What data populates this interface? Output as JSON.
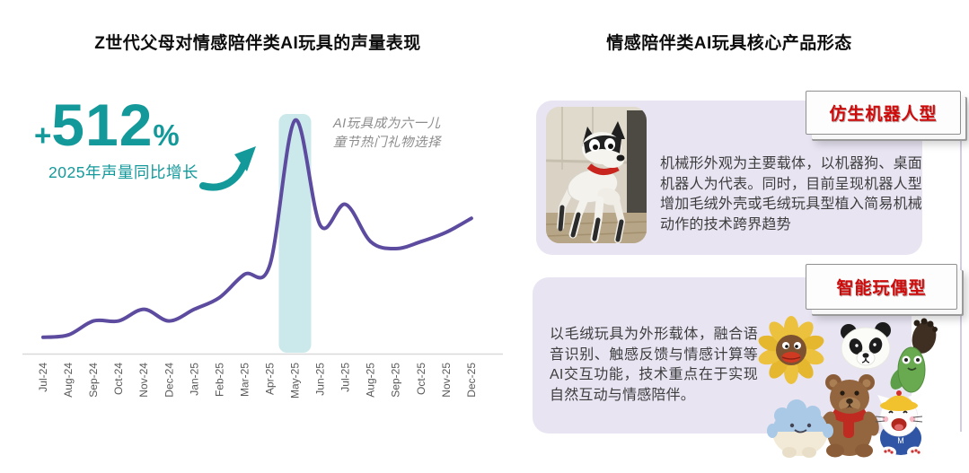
{
  "page": {
    "background": "#ffffff"
  },
  "left_panel": {
    "title": "Z世代父母对情感陪伴类AI玩具的声量表现",
    "callout": {
      "prefix": "+",
      "value": "512",
      "suffix": "%",
      "label": "2025年声量同比增长",
      "color": "#14999B"
    },
    "annotation": {
      "line1": "AI玩具成为六一儿",
      "line2": "童节热门礼物选择"
    }
  },
  "right_panel": {
    "title": "情感陪伴类AI玩具核心产品形态",
    "badge_text_color": "#CE0B0B",
    "cards": [
      {
        "badge": "仿生机器人型",
        "image": "robot-dog-photo",
        "body": "机械形外观为主要载体，以机器狗、桌面机器人为代表。同时，目前呈现机器人型增加毛绒外壳或毛绒玩具型植入简易机械动作的技术跨界趋势"
      },
      {
        "badge": "智能玩偶型",
        "image": "plush-toys-photo",
        "body": "以毛绒玩具为外形载体，融合语音识别、触感反馈与情感计算等AI交互功能，技术重点在于实现自然互动与情感陪伴。"
      }
    ]
  },
  "chart_data": {
    "type": "line",
    "title": "Z世代父母对情感陪伴类AI玩具的声量表现",
    "x": [
      "Jul-24",
      "Aug-24",
      "Sep-24",
      "Oct-24",
      "Nov-24",
      "Dec-24",
      "Jan-25",
      "Feb-25",
      "Mar-25",
      "Apr-25",
      "May-25",
      "Jun-25",
      "Jul-25",
      "Aug-25",
      "Sep-25",
      "Oct-25",
      "Nov-25",
      "Dec-25"
    ],
    "values": [
      7,
      8,
      14,
      14,
      19,
      14,
      19,
      24,
      34,
      38,
      100,
      55,
      64,
      48,
      45,
      48,
      52,
      58
    ],
    "ylim": [
      0,
      105
    ],
    "grid": false,
    "legend": "none",
    "line_color": "#5C4B9E",
    "axis_color": "#D9D9D9",
    "tick_color": "#595959",
    "highlight_band": {
      "month": "May-25",
      "color": "#CBE8EA",
      "annotation": "AI玩具成为六一儿童节热门礼物选择"
    },
    "callout": {
      "value": "+512%",
      "label": "2025年声量同比增长"
    }
  }
}
